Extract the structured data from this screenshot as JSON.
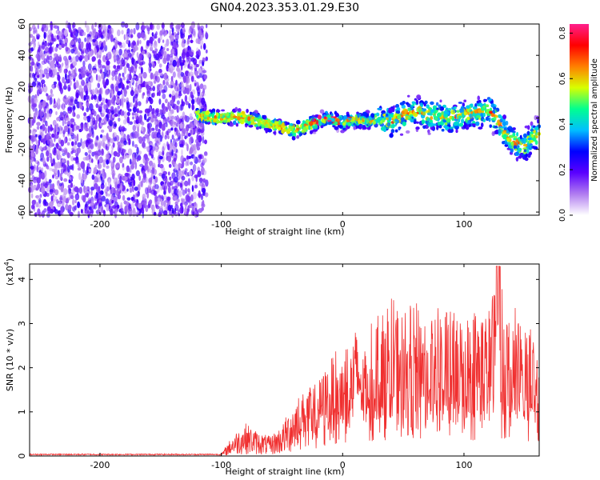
{
  "title": "GN04.2023.353.01.29.E30",
  "chart_data": [
    {
      "type": "heatmap",
      "xlabel": "Height of straight line (km)",
      "ylabel": "Frequency (Hz)",
      "xlim": [
        -258,
        162
      ],
      "ylim": [
        -62,
        60
      ],
      "x_ticks": [
        -200,
        -100,
        0,
        100
      ],
      "y_ticks": [
        -60,
        -40,
        -20,
        0,
        20,
        40,
        60
      ],
      "colorbar": {
        "label": "Normalized spectral amplitude",
        "range": [
          0,
          0.84
        ],
        "ticks": [
          0.0,
          0.2,
          0.4,
          0.6,
          0.8
        ],
        "colormap": [
          "#ffffff",
          "#b07cf0",
          "#5a00ff",
          "#0000ff",
          "#00bfff",
          "#00ff90",
          "#d8ff00",
          "#ff7f00",
          "#ff0000",
          "#ff1f8c"
        ]
      },
      "noise_region_x": [
        -258,
        -112
      ],
      "ridge": [
        [
          -120,
          2
        ],
        [
          -105,
          0
        ],
        [
          -90,
          1
        ],
        [
          -80,
          0
        ],
        [
          -70,
          -2
        ],
        [
          -60,
          -4
        ],
        [
          -50,
          -6
        ],
        [
          -40,
          -8
        ],
        [
          -30,
          -5
        ],
        [
          -20,
          -2
        ],
        [
          -10,
          0
        ],
        [
          0,
          -3
        ],
        [
          10,
          -1
        ],
        [
          20,
          -2
        ],
        [
          30,
          0
        ],
        [
          40,
          -3
        ],
        [
          50,
          2
        ],
        [
          60,
          4
        ],
        [
          70,
          2
        ],
        [
          80,
          1
        ],
        [
          90,
          0
        ],
        [
          100,
          2
        ],
        [
          110,
          3
        ],
        [
          120,
          6
        ],
        [
          130,
          -5
        ],
        [
          140,
          -15
        ],
        [
          150,
          -18
        ],
        [
          160,
          -10
        ]
      ]
    },
    {
      "type": "line",
      "xlabel": "Height of straight line (km)",
      "ylabel": "SNR (10 * v/v)",
      "scale_label": "(x10",
      "scale_exponent": "4",
      "scale_suffix": ")",
      "xlim": [
        -258,
        162
      ],
      "ylim": [
        0,
        4.35
      ],
      "x_ticks": [
        -200,
        -100,
        0,
        100
      ],
      "y_ticks": [
        0,
        1,
        2,
        3,
        4
      ],
      "line_color": "#f03030",
      "envelope": [
        [
          -258,
          0.04
        ],
        [
          -100,
          0.05
        ],
        [
          -90,
          0.5
        ],
        [
          -80,
          0.75
        ],
        [
          -70,
          0.55
        ],
        [
          -60,
          0.45
        ],
        [
          -50,
          0.7
        ],
        [
          -40,
          1.3
        ],
        [
          -30,
          1.5
        ],
        [
          -20,
          1.7
        ],
        [
          -10,
          2.2
        ],
        [
          0,
          2.6
        ],
        [
          10,
          2.9
        ],
        [
          20,
          2.8
        ],
        [
          30,
          3.4
        ],
        [
          40,
          3.6
        ],
        [
          50,
          3.3
        ],
        [
          60,
          3.5
        ],
        [
          70,
          3.2
        ],
        [
          80,
          3.4
        ],
        [
          90,
          3.3
        ],
        [
          100,
          3.2
        ],
        [
          110,
          3.4
        ],
        [
          120,
          3.3
        ],
        [
          128,
          4.3
        ],
        [
          135,
          3.3
        ],
        [
          145,
          3.4
        ],
        [
          155,
          3.0
        ],
        [
          162,
          1.9
        ]
      ]
    }
  ]
}
